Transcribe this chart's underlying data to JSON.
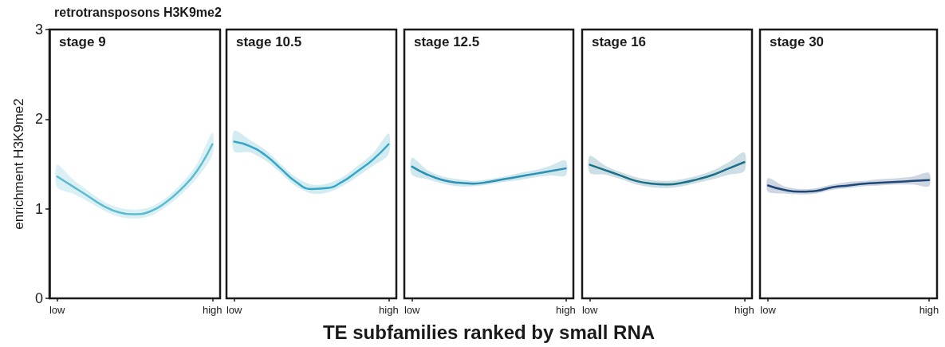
{
  "chart_data": [
    {
      "type": "line",
      "annotations": [
        "retrotransposons H3K9me2"
      ],
      "title": "stage 9",
      "ylabel": "enrichment H3K9me2",
      "categories": [
        "low",
        null,
        null,
        null,
        null,
        null,
        null,
        null,
        null,
        null,
        "high"
      ],
      "ylim": [
        0,
        3
      ],
      "yticks": [
        0,
        1,
        2,
        3
      ],
      "grid": false,
      "marker": "none",
      "series": [
        {
          "color": "#5bbccf",
          "values": [
            1.36,
            1.25,
            1.14,
            1.03,
            0.96,
            0.94,
            0.97,
            1.07,
            1.22,
            1.42,
            1.72
          ],
          "lower": [
            1.24,
            1.17,
            1.08,
            0.98,
            0.91,
            0.89,
            0.92,
            1.02,
            1.16,
            1.34,
            1.6
          ],
          "upper": [
            1.49,
            1.33,
            1.2,
            1.08,
            1.01,
            0.99,
            1.02,
            1.12,
            1.28,
            1.5,
            1.85
          ]
        }
      ]
    },
    {
      "type": "line",
      "title": "stage 10.5",
      "categories": [
        "low",
        null,
        null,
        null,
        null,
        null,
        null,
        null,
        null,
        null,
        "high"
      ],
      "ylim": [
        0,
        3
      ],
      "yticks": [
        0,
        1,
        2,
        3
      ],
      "tick_labels": "x",
      "grid": false,
      "marker": "none",
      "series": [
        {
          "color": "#35a7c6",
          "values": [
            1.75,
            1.7,
            1.6,
            1.45,
            1.3,
            1.22,
            1.23,
            1.3,
            1.42,
            1.55,
            1.72
          ],
          "lower": [
            1.64,
            1.63,
            1.54,
            1.4,
            1.25,
            1.17,
            1.18,
            1.25,
            1.36,
            1.48,
            1.61
          ],
          "upper": [
            1.87,
            1.77,
            1.66,
            1.5,
            1.35,
            1.27,
            1.28,
            1.35,
            1.48,
            1.62,
            1.84
          ]
        }
      ]
    },
    {
      "type": "line",
      "title": "stage 12.5",
      "xlabel": "TE subfamilies ranked by small RNA",
      "categories": [
        "low",
        null,
        null,
        null,
        null,
        null,
        null,
        null,
        null,
        null,
        "high"
      ],
      "ylim": [
        0,
        3
      ],
      "yticks": [
        0,
        1,
        2,
        3
      ],
      "tick_labels": "x",
      "grid": false,
      "marker": "none",
      "series": [
        {
          "color": "#2b90b2",
          "values": [
            1.47,
            1.38,
            1.32,
            1.29,
            1.28,
            1.3,
            1.33,
            1.36,
            1.39,
            1.42,
            1.45
          ],
          "lower": [
            1.38,
            1.33,
            1.28,
            1.25,
            1.25,
            1.27,
            1.3,
            1.32,
            1.35,
            1.37,
            1.37
          ],
          "upper": [
            1.57,
            1.43,
            1.36,
            1.33,
            1.31,
            1.33,
            1.36,
            1.4,
            1.43,
            1.48,
            1.54
          ]
        }
      ]
    },
    {
      "type": "line",
      "title": "stage 16",
      "categories": [
        "low",
        null,
        null,
        null,
        null,
        null,
        null,
        null,
        null,
        null,
        "high"
      ],
      "ylim": [
        0,
        3
      ],
      "yticks": [
        0,
        1,
        2,
        3
      ],
      "tick_labels": "x",
      "grid": false,
      "marker": "none",
      "series": [
        {
          "color": "#1c6f87",
          "values": [
            1.49,
            1.43,
            1.37,
            1.31,
            1.28,
            1.27,
            1.29,
            1.33,
            1.38,
            1.45,
            1.52
          ],
          "lower": [
            1.4,
            1.38,
            1.33,
            1.27,
            1.24,
            1.23,
            1.25,
            1.29,
            1.33,
            1.38,
            1.42
          ],
          "upper": [
            1.59,
            1.48,
            1.41,
            1.35,
            1.32,
            1.31,
            1.33,
            1.37,
            1.43,
            1.52,
            1.63
          ]
        }
      ]
    },
    {
      "type": "line",
      "title": "stage 30",
      "categories": [
        "low",
        null,
        null,
        null,
        null,
        null,
        null,
        null,
        null,
        null,
        "high"
      ],
      "ylim": [
        0,
        3
      ],
      "yticks": [
        0,
        1,
        2,
        3
      ],
      "tick_labels": "x",
      "grid": false,
      "marker": "none",
      "series": [
        {
          "color": "#1f4676",
          "values": [
            1.26,
            1.21,
            1.19,
            1.2,
            1.24,
            1.26,
            1.28,
            1.29,
            1.3,
            1.31,
            1.32
          ],
          "lower": [
            1.19,
            1.17,
            1.16,
            1.17,
            1.21,
            1.23,
            1.25,
            1.26,
            1.27,
            1.27,
            1.25
          ],
          "upper": [
            1.34,
            1.25,
            1.22,
            1.23,
            1.27,
            1.3,
            1.31,
            1.33,
            1.34,
            1.36,
            1.4
          ]
        }
      ]
    }
  ]
}
